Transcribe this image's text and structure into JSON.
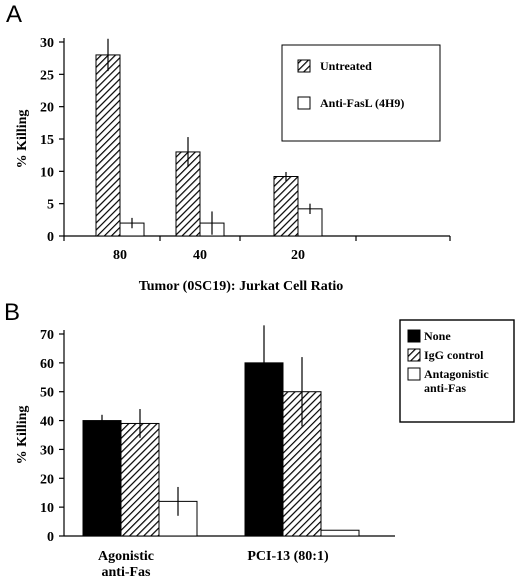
{
  "chart_data": [
    {
      "panel": "A",
      "type": "bar",
      "categories": [
        "80",
        "40",
        "20"
      ],
      "series": [
        {
          "name": "Untreated",
          "values": [
            28,
            13,
            9.2
          ],
          "errors": [
            2.5,
            2.3,
            0.7
          ],
          "fill": "hatch",
          "color": "#000000"
        },
        {
          "name": "Anti-FasL (4H9)",
          "values": [
            2,
            2,
            4.2
          ],
          "errors": [
            0.8,
            1.8,
            0.8
          ],
          "fill": "white",
          "color": "#ffffff"
        }
      ],
      "xlabel": "Tumor (0SC19): Jurkat Cell Ratio",
      "ylabel": "% Killing",
      "ylim": [
        0,
        30
      ],
      "yticks": [
        "0",
        "5",
        "10",
        "15",
        "20",
        "25",
        "30"
      ],
      "legend": "top-right",
      "grid": false
    },
    {
      "panel": "B",
      "type": "bar",
      "categories": [
        [
          "Agonistic",
          "anti-Fas"
        ],
        [
          "PCI-13 (80:1)"
        ]
      ],
      "series": [
        {
          "name": "None",
          "values": [
            40,
            60
          ],
          "errors": [
            2,
            13
          ],
          "fill": "solid",
          "color": "#000000"
        },
        {
          "name": "IgG control",
          "values": [
            39,
            50
          ],
          "errors": [
            5,
            12
          ],
          "fill": "hatch",
          "color": "#000000"
        },
        {
          "name": [
            "Antagonistic",
            "anti-Fas"
          ],
          "values": [
            12,
            2
          ],
          "errors": [
            5,
            0
          ],
          "fill": "white",
          "color": "#ffffff"
        }
      ],
      "xlabel": "",
      "ylabel": "% Killing",
      "ylim": [
        0,
        70
      ],
      "yticks": [
        "0",
        "10",
        "20",
        "30",
        "40",
        "50",
        "60",
        "70"
      ],
      "legend": "outside-right",
      "grid": false
    }
  ]
}
